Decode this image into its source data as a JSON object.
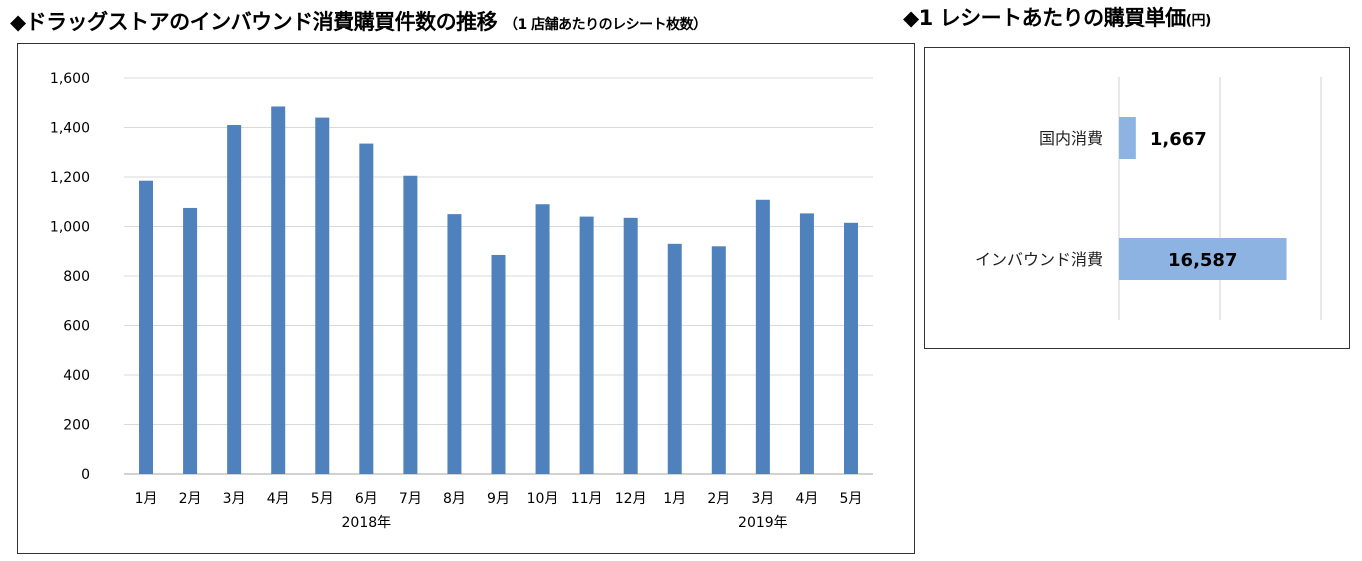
{
  "left_title": {
    "main": "◆ドラッグストアのインバウンド消費購買件数の推移",
    "sub": "（1 店舗あたりのレシート枚数）"
  },
  "right_title": {
    "main": "◆1 レシートあたりの購買単価",
    "sub": "(円)"
  },
  "chart_data": [
    {
      "type": "bar",
      "title": "ドラッグストアのインバウンド消費購買件数の推移",
      "categories": [
        "1月",
        "2月",
        "3月",
        "4月",
        "5月",
        "6月",
        "7月",
        "8月",
        "9月",
        "10月",
        "11月",
        "12月",
        "1月",
        "2月",
        "3月",
        "4月",
        "5月"
      ],
      "year_labels": [
        {
          "label": "2018年",
          "category_index": 5
        },
        {
          "label": "2019年",
          "category_index": 14
        }
      ],
      "values": [
        1185,
        1075,
        1410,
        1485,
        1440,
        1335,
        1205,
        1050,
        885,
        1090,
        1040,
        1035,
        930,
        920,
        1108,
        1053,
        1015
      ],
      "ylim": [
        0,
        1600
      ],
      "yticks": [
        0,
        200,
        400,
        600,
        800,
        1000,
        1200,
        1400,
        1600
      ],
      "ytick_labels": [
        "0",
        "200",
        "400",
        "600",
        "800",
        "1,000",
        "1,200",
        "1,400",
        "1,600"
      ],
      "grid": true,
      "bar_color": "#4f81bd"
    },
    {
      "type": "bar",
      "orientation": "horizontal",
      "title": "1 レシートあたりの購買単価",
      "unit": "円",
      "categories": [
        "国内消費",
        "インバウンド消費"
      ],
      "values": [
        1667,
        16587
      ],
      "value_labels": [
        "1,667",
        "16,587"
      ],
      "xlim": [
        0,
        20000
      ],
      "grid": true,
      "bar_color": "#8db3e2"
    }
  ]
}
